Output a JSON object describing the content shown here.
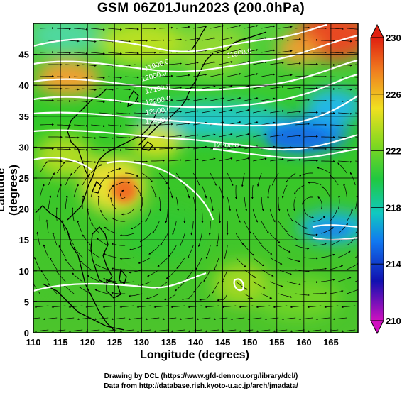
{
  "title": "GSM 06Z01Jun2023 (200.0hPa)",
  "xlabel": "Longitude (degrees)",
  "ylabel": "Latitude (degrees)",
  "credits": {
    "drawing": "Drawing by DCL (https://www.gfd-dennou.org/library/dcl/)",
    "data": "Data from http://database.rish.kyoto-u.ac.jp/arch/jmadata/"
  },
  "map": {
    "lon_range": [
      110,
      170
    ],
    "lat_range": [
      0,
      50
    ],
    "x_ticks": [
      "110",
      "115",
      "120",
      "125",
      "130",
      "135",
      "140",
      "145",
      "150",
      "155",
      "160",
      "165"
    ],
    "y_ticks": [
      "0",
      "5",
      "10",
      "15",
      "20",
      "25",
      "30",
      "35",
      "40",
      "45"
    ],
    "colorbar": {
      "labels": [
        "230",
        "226",
        "222",
        "218",
        "214",
        "210"
      ],
      "min": 210,
      "max": 230,
      "colors": [
        "#c000c0",
        "#3010c8",
        "#1060f0",
        "#10b8e0",
        "#10d070",
        "#30c020",
        "#a0dc10",
        "#f0e020",
        "#f0a020",
        "#e84010"
      ]
    },
    "contour_labels": [
      "11900.0",
      "12000.0",
      "12100.0",
      "12200.0",
      "12300.0",
      "12400.0",
      "11800.0",
      "12500.0"
    ]
  }
}
